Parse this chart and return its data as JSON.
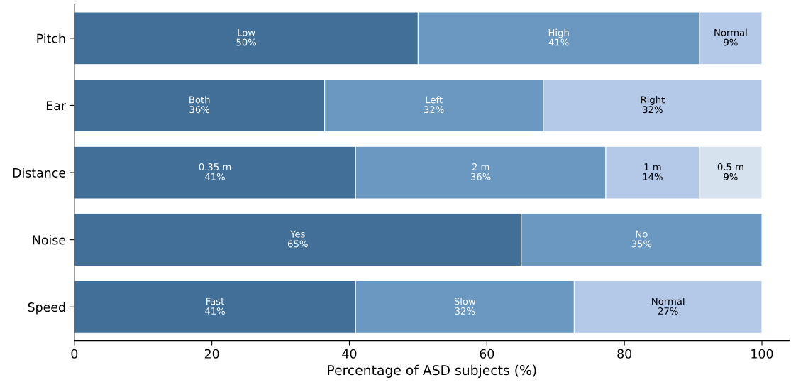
{
  "chart_data": {
    "type": "bar",
    "orientation": "horizontal",
    "stacked": true,
    "xlabel": "Percentage of ASD subjects (%)",
    "categories": [
      "Pitch",
      "Ear",
      "Distance",
      "Noise",
      "Speed"
    ],
    "xlim": [
      0,
      104
    ],
    "xticks": [
      0,
      20,
      40,
      60,
      80,
      100
    ],
    "grid": false,
    "legend": false,
    "series": [
      {
        "color": "#426f98",
        "values": [
          50,
          36.4,
          40.9,
          65,
          40.9
        ],
        "value_labels": [
          "Low\n50%",
          "Both\n36%",
          "0.35 m\n41%",
          "Yes\n65%",
          "Fast\n41%"
        ]
      },
      {
        "color": "#6a98c0",
        "values": [
          40.9,
          31.8,
          36.4,
          35,
          31.8
        ],
        "value_labels": [
          "High\n41%",
          "Left\n32%",
          "2 m\n36%",
          "No\n35%",
          "Slow\n32%"
        ]
      },
      {
        "color": "#b4c9e8",
        "values": [
          9.1,
          31.8,
          13.6,
          null,
          27.3
        ],
        "value_labels": [
          "Normal\n9%",
          "Right\n32%",
          "1 m\n14%",
          null,
          "Normal\n27%"
        ]
      },
      {
        "color": "#d6e3ef",
        "values": [
          null,
          null,
          9.1,
          null,
          null
        ],
        "value_labels": [
          null,
          null,
          "0.5 m\n9%",
          null,
          null
        ]
      }
    ]
  }
}
